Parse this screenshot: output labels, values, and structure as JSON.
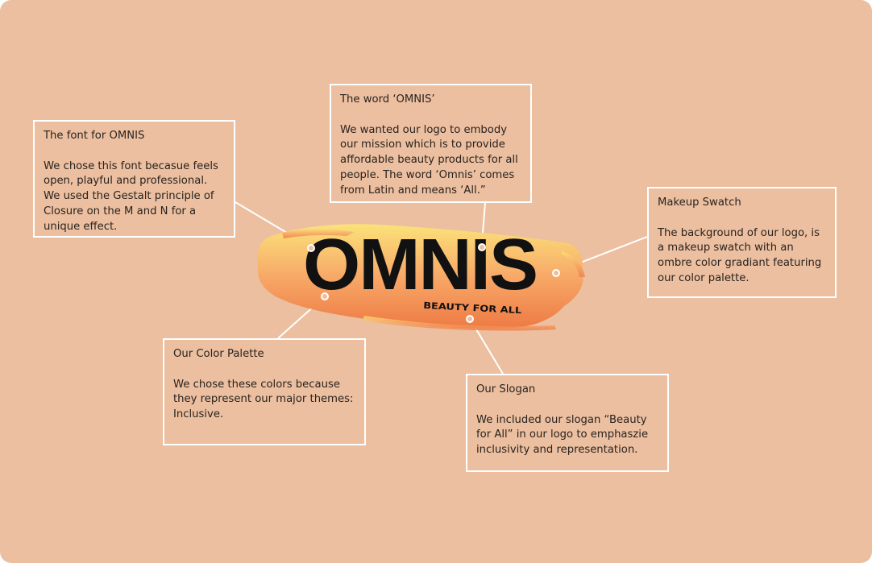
{
  "colors": {
    "background": "#ebbf9f",
    "note_border": "#ffffff",
    "text": "#2a2320",
    "logo_text": "#111111",
    "swatch_light": "#fbe27a",
    "swatch_mid": "#f7a968",
    "swatch_deep": "#ee7a44"
  },
  "logo": {
    "wordmark": "OMNIS",
    "slogan": "BEAUTY FOR ALL"
  },
  "notes": {
    "font": {
      "title": "The font for OMNIS",
      "body": "We chose this font becasue feels open, playful and professional. We used the Gestalt principle of Closure on the M and N for a unique effect."
    },
    "word": {
      "title": "The word ‘OMNIS’",
      "body": "We wanted our logo to embody our mission which is to provide affordable beauty products for all people. The word ‘Omnis’ comes from Latin and means ‘All.”"
    },
    "swatch": {
      "title": "Makeup Swatch",
      "body": "The background of our logo, is a makeup swatch with an ombre color gradiant featuring our color palette."
    },
    "palette": {
      "title": "Our Color Palette",
      "body": "We chose these colors because they represent our major themes: Inclusive."
    },
    "slogan": {
      "title": "Our Slogan",
      "body": "We included our slogan “Beauty for All” in our logo to emphaszie inclusivity and representation."
    }
  }
}
